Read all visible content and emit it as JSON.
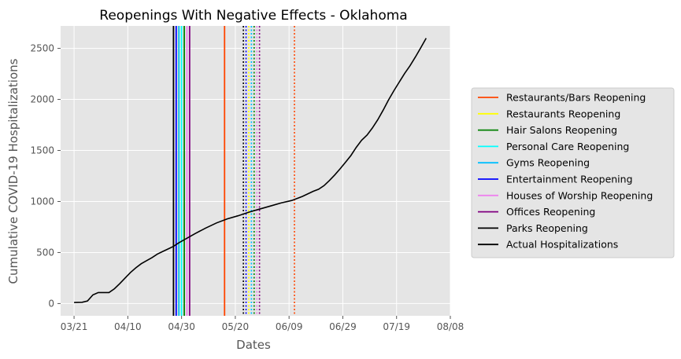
{
  "chart_data": {
    "type": "line",
    "title": "Reopenings With Negative Effects - Oklahoma",
    "xlabel": "Dates",
    "ylabel": "Cumulative COVID-19 Hospitalizations",
    "x_ticks": [
      "03/21",
      "04/10",
      "04/30",
      "05/20",
      "06/09",
      "06/29",
      "07/19",
      "08/08"
    ],
    "x_range": [
      "2020-03-16",
      "2020-08-08"
    ],
    "y_ticks": [
      0,
      500,
      1000,
      1500,
      2000,
      2500
    ],
    "ylim": [
      -120,
      2720
    ],
    "grid": true,
    "legend_position": "right",
    "series": [
      {
        "name": "Actual Hospitalizations",
        "color": "#000000",
        "x": [
          "2020-03-21",
          "2020-03-24",
          "2020-03-26",
          "2020-03-28",
          "2020-03-30",
          "2020-04-01",
          "2020-04-03",
          "2020-04-05",
          "2020-04-07",
          "2020-04-09",
          "2020-04-11",
          "2020-04-13",
          "2020-04-15",
          "2020-04-17",
          "2020-04-19",
          "2020-04-21",
          "2020-04-23",
          "2020-04-25",
          "2020-04-27",
          "2020-04-29",
          "2020-05-01",
          "2020-05-03",
          "2020-05-05",
          "2020-05-09",
          "2020-05-13",
          "2020-05-17",
          "2020-05-21",
          "2020-05-25",
          "2020-05-29",
          "2020-06-02",
          "2020-06-06",
          "2020-06-10",
          "2020-06-14",
          "2020-06-18",
          "2020-06-20",
          "2020-06-22",
          "2020-06-24",
          "2020-06-26",
          "2020-06-28",
          "2020-06-30",
          "2020-07-02",
          "2020-07-04",
          "2020-07-06",
          "2020-07-08",
          "2020-07-10",
          "2020-07-12",
          "2020-07-14",
          "2020-07-16",
          "2020-07-18",
          "2020-07-20",
          "2020-07-22",
          "2020-07-24",
          "2020-07-26",
          "2020-07-28",
          "2020-07-30"
        ],
        "y": [
          10,
          12,
          25,
          85,
          108,
          108,
          108,
          145,
          195,
          250,
          305,
          350,
          390,
          420,
          450,
          485,
          510,
          535,
          560,
          595,
          625,
          655,
          685,
          740,
          790,
          830,
          860,
          895,
          925,
          955,
          985,
          1010,
          1050,
          1100,
          1120,
          1155,
          1205,
          1260,
          1320,
          1385,
          1450,
          1530,
          1600,
          1650,
          1720,
          1800,
          1895,
          1995,
          2085,
          2170,
          2255,
          2330,
          2415,
          2505,
          2600
        ]
      }
    ],
    "reopenings": [
      {
        "name": "Restaurants/Bars Reopening",
        "color": "#ff4500",
        "solid": "2020-05-16",
        "dotted": "2020-06-11"
      },
      {
        "name": "Restaurants Reopening",
        "color": "#ffff00",
        "solid": "2020-04-29",
        "dotted": "2020-05-25"
      },
      {
        "name": "Hair Salons Reopening",
        "color": "#008000",
        "solid": "2020-05-01",
        "dotted": "2020-05-27"
      },
      {
        "name": "Personal Care Reopening",
        "color": "#00ffff",
        "solid": "2020-04-30",
        "dotted": "2020-05-26"
      },
      {
        "name": "Gyms Reopening",
        "color": "#00bfff",
        "solid": "2020-04-29",
        "dotted": "2020-05-26"
      },
      {
        "name": "Entertainment Reopening",
        "color": "#0000ff",
        "solid": "2020-04-28",
        "dotted": "2020-05-24"
      },
      {
        "name": "Houses of Worship Reopening",
        "color": "#ee82ee",
        "solid": "2020-05-02",
        "dotted": "2020-05-28"
      },
      {
        "name": "Offices Reopening",
        "color": "#800080",
        "solid": "2020-05-03",
        "dotted": "2020-05-29"
      },
      {
        "name": "Parks Reopening",
        "color": "#000000",
        "solid": "2020-04-27",
        "dotted": "2020-05-23"
      }
    ],
    "legend": [
      "Restaurants/Bars Reopening",
      "Restaurants Reopening",
      "Hair Salons Reopening",
      "Personal Care Reopening",
      "Gyms Reopening",
      "Entertainment Reopening",
      "Houses of Worship Reopening",
      "Offices Reopening",
      "Parks Reopening",
      "Actual Hospitalizations"
    ]
  }
}
